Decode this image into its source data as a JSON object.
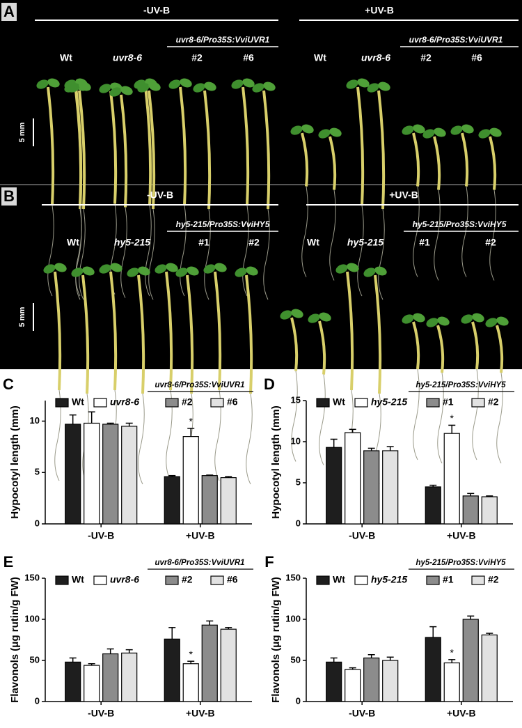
{
  "panels": [
    {
      "letter": "A",
      "scale": "5 mm",
      "groups": [
        {
          "condition": "-UV-B",
          "line": "uvr8-6/Pro35S:VviUVR1",
          "labels": [
            "Wt",
            "uvr8-6",
            "#2",
            "#6"
          ]
        },
        {
          "condition": "+UV-B",
          "line": "uvr8-6/Pro35S:VviUVR1",
          "labels": [
            "Wt",
            "uvr8-6",
            "#2",
            "#6"
          ]
        }
      ]
    },
    {
      "letter": "B",
      "scale": "5 mm",
      "groups": [
        {
          "condition": "-UV-B",
          "line": "hy5-215/Pro35S:VviHY5",
          "labels": [
            "Wt",
            "hy5-215",
            "#1",
            "#2"
          ]
        },
        {
          "condition": "+UV-B",
          "line": "hy5-215/Pro35S:VviHY5",
          "labels": [
            "Wt",
            "hy5-215",
            "#1",
            "#2"
          ]
        }
      ]
    }
  ],
  "chart_data": [
    {
      "type": "bar",
      "panel": "C",
      "ylabel": "Hypocotyl length (mm)",
      "line": "uvr8-6/Pro35S:VviUVR1",
      "categories": [
        "-UV-B",
        "+UV-B"
      ],
      "ylim": [
        0,
        12
      ],
      "yticks": [
        0,
        5,
        10
      ],
      "series": [
        {
          "name": "Wt",
          "color": "#1e1e1e",
          "values": [
            9.7,
            4.6
          ],
          "errors": [
            0.9,
            0.1
          ]
        },
        {
          "name": "uvr8-6",
          "color": "#ffffff",
          "values": [
            9.8,
            8.5
          ],
          "errors": [
            1.1,
            0.8
          ]
        },
        {
          "name": "#2",
          "color": "#8c8c8c",
          "values": [
            9.7,
            4.7
          ],
          "errors": [
            0.1,
            0.05
          ]
        },
        {
          "name": "#6",
          "color": "#e2e2e2",
          "values": [
            9.5,
            4.5
          ],
          "errors": [
            0.3,
            0.1
          ]
        }
      ],
      "annotations": [
        {
          "text": "*",
          "series": 1,
          "category": 1
        }
      ]
    },
    {
      "type": "bar",
      "panel": "D",
      "ylabel": "Hypocotyl length (mm)",
      "line": "hy5-215/Pro35S:VviHY5",
      "categories": [
        "-UV-B",
        "+UV-B"
      ],
      "ylim": [
        0,
        15
      ],
      "yticks": [
        0,
        5,
        10,
        15
      ],
      "series": [
        {
          "name": "Wt",
          "color": "#1e1e1e",
          "values": [
            9.3,
            4.5
          ],
          "errors": [
            1.0,
            0.2
          ]
        },
        {
          "name": "hy5-215",
          "color": "#ffffff",
          "values": [
            11.1,
            11.0
          ],
          "errors": [
            0.4,
            1.0
          ]
        },
        {
          "name": "#1",
          "color": "#8c8c8c",
          "values": [
            8.9,
            3.4
          ],
          "errors": [
            0.3,
            0.3
          ]
        },
        {
          "name": "#2",
          "color": "#e2e2e2",
          "values": [
            8.9,
            3.3
          ],
          "errors": [
            0.5,
            0.1
          ]
        }
      ],
      "annotations": [
        {
          "text": "*",
          "series": 1,
          "category": 1
        }
      ]
    },
    {
      "type": "bar",
      "panel": "E",
      "ylabel": "Flavonols (μg rutin/g FW)",
      "line": "uvr8-6/Pro35S:VviUVR1",
      "categories": [
        "-UV-B",
        "+UV-B"
      ],
      "ylim": [
        0,
        150
      ],
      "yticks": [
        0,
        50,
        100,
        150
      ],
      "series": [
        {
          "name": "Wt",
          "color": "#1e1e1e",
          "values": [
            48,
            76
          ],
          "errors": [
            5,
            14
          ]
        },
        {
          "name": "uvr8-6",
          "color": "#ffffff",
          "values": [
            44,
            46
          ],
          "errors": [
            2,
            3
          ]
        },
        {
          "name": "#2",
          "color": "#8c8c8c",
          "values": [
            58,
            93
          ],
          "errors": [
            6,
            5
          ]
        },
        {
          "name": "#6",
          "color": "#e2e2e2",
          "values": [
            59,
            88
          ],
          "errors": [
            4,
            2
          ]
        }
      ],
      "annotations": [
        {
          "text": "*",
          "series": 1,
          "category": 1
        }
      ]
    },
    {
      "type": "bar",
      "panel": "F",
      "ylabel": "Flavonols (μg rutin/g FW)",
      "line": "hy5-215/Pro35S:VviHY5",
      "categories": [
        "-UV-B",
        "+UV-B"
      ],
      "ylim": [
        0,
        150
      ],
      "yticks": [
        0,
        50,
        100,
        150
      ],
      "series": [
        {
          "name": "Wt",
          "color": "#1e1e1e",
          "values": [
            48,
            78
          ],
          "errors": [
            5,
            13
          ]
        },
        {
          "name": "hy5-215",
          "color": "#ffffff",
          "values": [
            39,
            47
          ],
          "errors": [
            2,
            4
          ]
        },
        {
          "name": "#1",
          "color": "#8c8c8c",
          "values": [
            53,
            100
          ],
          "errors": [
            4,
            4
          ]
        },
        {
          "name": "#2",
          "color": "#e2e2e2",
          "values": [
            50,
            81
          ],
          "errors": [
            4,
            2
          ]
        }
      ],
      "annotations": [
        {
          "text": "*",
          "series": 1,
          "category": 1
        }
      ]
    }
  ]
}
